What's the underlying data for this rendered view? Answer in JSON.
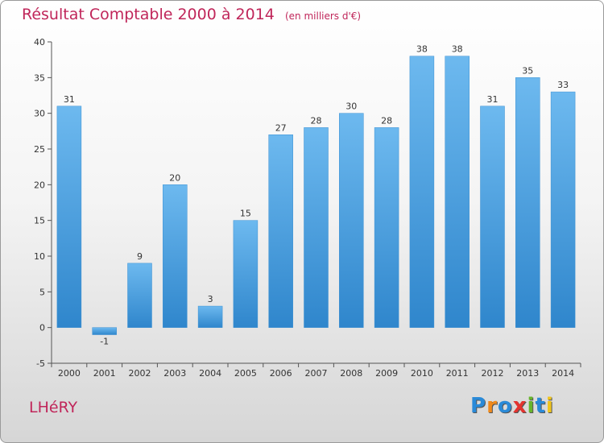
{
  "header": {
    "title": "Résultat Comptable 2000 à 2014",
    "subtitle": "(en milliers d'€)"
  },
  "commune": "LHéRY",
  "logo": {
    "text": "Proxiti",
    "letters": [
      {
        "ch": "P",
        "color": "#2a8ad8"
      },
      {
        "ch": "r",
        "color": "#f08a1c"
      },
      {
        "ch": "o",
        "color": "#2a8ad8"
      },
      {
        "ch": "x",
        "color": "#e3332f"
      },
      {
        "ch": "i",
        "color": "#67b52b"
      },
      {
        "ch": "t",
        "color": "#2a8ad8"
      },
      {
        "ch": "i",
        "color": "#f0c41c"
      }
    ]
  },
  "chart_data": {
    "type": "bar",
    "title": "Résultat Comptable 2000 à 2014",
    "subtitle": "(en milliers d'€)",
    "xlabel": "",
    "ylabel": "",
    "categories": [
      "2000",
      "2001",
      "2002",
      "2003",
      "2004",
      "2005",
      "2006",
      "2007",
      "2008",
      "2009",
      "2010",
      "2011",
      "2012",
      "2013",
      "2014"
    ],
    "values": [
      31,
      -1,
      9,
      20,
      3,
      15,
      27,
      28,
      30,
      28,
      38,
      38,
      31,
      35,
      33
    ],
    "ylim": [
      -5,
      40
    ],
    "yticks": [
      -5,
      0,
      5,
      10,
      15,
      20,
      25,
      30,
      35,
      40
    ],
    "grid": false,
    "bar_color_light": "#6db9ef",
    "bar_color_dark": "#2f86cc"
  }
}
